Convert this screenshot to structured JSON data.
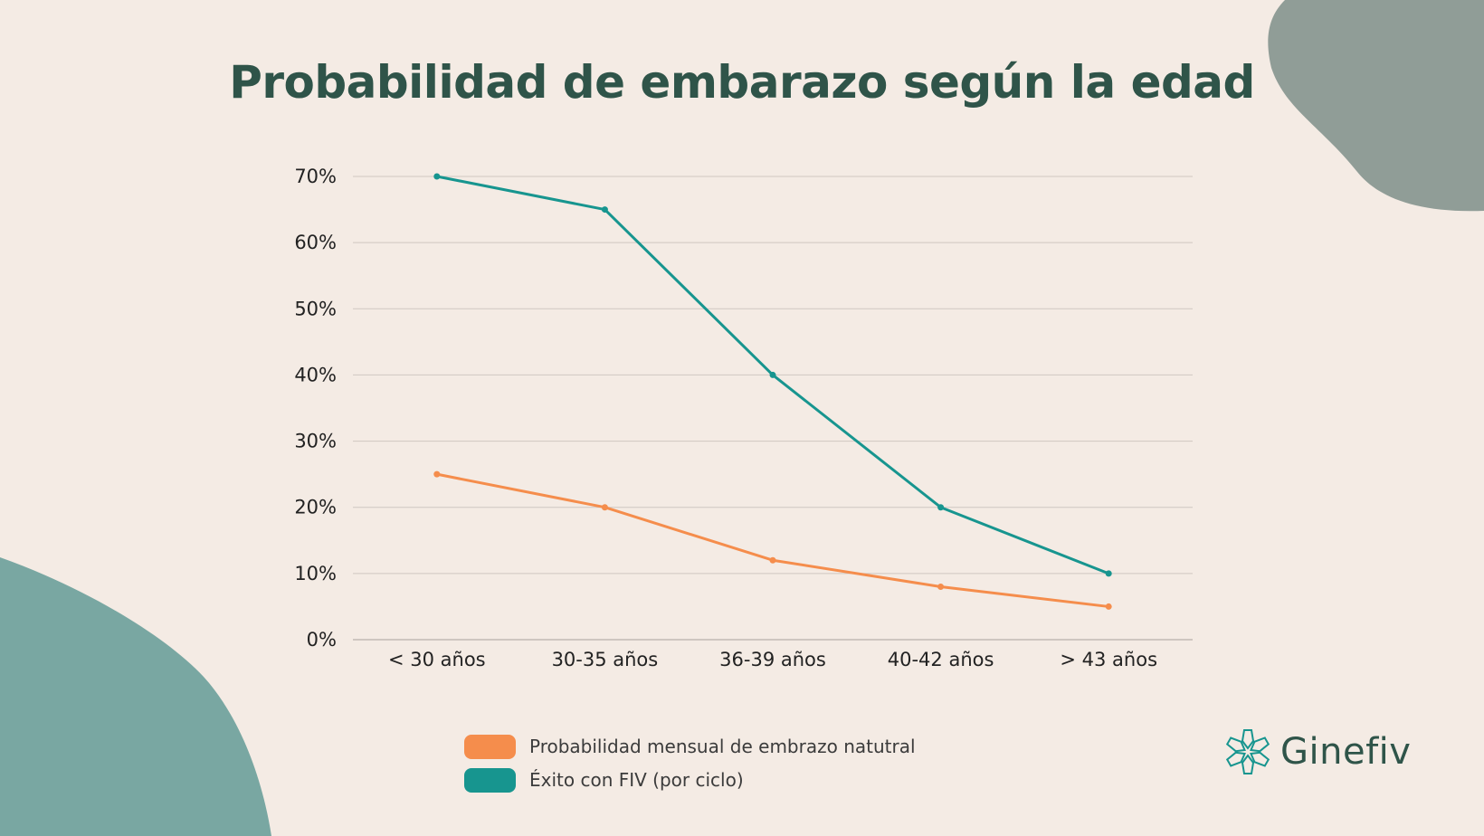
{
  "title": "Probabilidad de embarazo según la edad",
  "colors": {
    "background": "#f4ebe4",
    "title": "#2f5449",
    "natural": "#f58d4c",
    "fiv": "#17958f",
    "grid": "#cfc7c1",
    "blob_top_right": "#909d97",
    "blob_bottom_left": "#79a7a2"
  },
  "chart_data": {
    "type": "line",
    "title": "Probabilidad de embarazo según la edad",
    "categories": [
      "< 30 años",
      "30-35 años",
      "36-39 años",
      "40-42 años",
      "> 43 años"
    ],
    "series": [
      {
        "name": "Probabilidad mensual de embrazo natutral",
        "values": [
          25,
          20,
          12,
          8,
          5
        ]
      },
      {
        "name": "Éxito con FIV (por ciclo)",
        "values": [
          70,
          65,
          40,
          20,
          10
        ]
      }
    ],
    "ylim": [
      0,
      70
    ],
    "yticks": [
      0,
      10,
      20,
      30,
      40,
      50,
      60,
      70
    ],
    "ytick_labels": [
      "0%",
      "10%",
      "20%",
      "30%",
      "40%",
      "50%",
      "60%",
      "70%"
    ],
    "grid": true,
    "legend_position": "bottom"
  },
  "legend": {
    "items": [
      {
        "label": "Probabilidad mensual de embrazo natutral",
        "color": "#f58d4c"
      },
      {
        "label": "Éxito con FIV (por ciclo)",
        "color": "#17958f"
      }
    ]
  },
  "logo": {
    "text": "Ginefiv",
    "icon": "flower-logo-icon"
  }
}
